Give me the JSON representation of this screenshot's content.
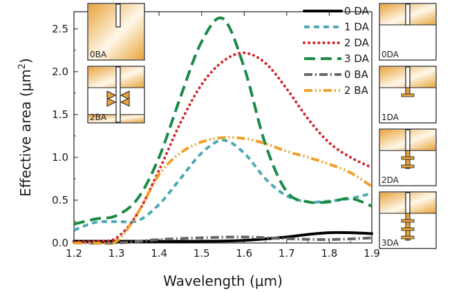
{
  "chart_data": {
    "type": "line",
    "xlabel": "Wavelength (μm)",
    "ylabel": "Effective area (μm",
    "ylabel_sup": "2",
    "ylabel_end": ")",
    "xlim": [
      1.2,
      1.9
    ],
    "ylim": [
      0.0,
      2.7
    ],
    "x_ticks": [
      "1.2",
      "1.3",
      "1.4",
      "1.5",
      "1.6",
      "1.7",
      "1.8",
      "1.9"
    ],
    "y_ticks": [
      "0.0",
      "0.5",
      "1.0",
      "1.5",
      "2.0",
      "2.5"
    ],
    "grid": false,
    "legend_position": "top-right",
    "series": [
      {
        "name": "0 DA",
        "color": "#000000",
        "dash": "solid",
        "x": [
          1.2,
          1.3,
          1.4,
          1.5,
          1.6,
          1.7,
          1.75,
          1.8,
          1.85,
          1.9
        ],
        "y": [
          0.02,
          0.02,
          0.02,
          0.02,
          0.03,
          0.07,
          0.1,
          0.12,
          0.12,
          0.11
        ]
      },
      {
        "name": "1 DA",
        "color": "#4fa8b5",
        "dash": "dash-short",
        "x": [
          1.2,
          1.25,
          1.3,
          1.35,
          1.4,
          1.45,
          1.5,
          1.55,
          1.6,
          1.65,
          1.7,
          1.75,
          1.8,
          1.85,
          1.9
        ],
        "y": [
          0.15,
          0.24,
          0.25,
          0.26,
          0.45,
          0.75,
          1.05,
          1.2,
          1.05,
          0.75,
          0.55,
          0.48,
          0.49,
          0.52,
          0.58
        ]
      },
      {
        "name": "2 DA",
        "color": "#d4232a",
        "dash": "dot",
        "x": [
          1.2,
          1.25,
          1.3,
          1.35,
          1.4,
          1.45,
          1.5,
          1.55,
          1.6,
          1.65,
          1.7,
          1.75,
          1.8,
          1.85,
          1.9
        ],
        "y": [
          0.01,
          0.02,
          0.06,
          0.35,
          0.85,
          1.4,
          1.85,
          2.12,
          2.22,
          2.1,
          1.8,
          1.45,
          1.17,
          1.0,
          0.88
        ]
      },
      {
        "name": "3 DA",
        "color": "#1a8a46",
        "dash": "dash-long",
        "x": [
          1.2,
          1.25,
          1.3,
          1.35,
          1.4,
          1.45,
          1.5,
          1.55,
          1.6,
          1.65,
          1.7,
          1.75,
          1.8,
          1.85,
          1.9
        ],
        "y": [
          0.22,
          0.28,
          0.32,
          0.52,
          1.0,
          1.7,
          2.35,
          2.62,
          2.05,
          1.15,
          0.6,
          0.48,
          0.48,
          0.52,
          0.43
        ]
      },
      {
        "name": "0 BA",
        "color": "#6d6560",
        "dash": "dash-dot",
        "x": [
          1.2,
          1.3,
          1.4,
          1.5,
          1.6,
          1.7,
          1.8,
          1.9
        ],
        "y": [
          0.0,
          0.0,
          0.04,
          0.06,
          0.07,
          0.05,
          0.04,
          0.06
        ]
      },
      {
        "name": "2 BA",
        "color": "#f0a028",
        "dash": "dash-dot-dot",
        "x": [
          1.2,
          1.25,
          1.3,
          1.35,
          1.4,
          1.45,
          1.5,
          1.55,
          1.6,
          1.65,
          1.7,
          1.75,
          1.8,
          1.85,
          1.9
        ],
        "y": [
          0.0,
          0.0,
          0.02,
          0.35,
          0.8,
          1.05,
          1.18,
          1.23,
          1.22,
          1.16,
          1.07,
          1.0,
          0.92,
          0.82,
          0.66
        ]
      }
    ]
  },
  "insets": {
    "left": [
      {
        "label": "0BA",
        "kind": "0BA"
      },
      {
        "label": "2BA",
        "kind": "2BA"
      }
    ],
    "right": [
      {
        "label": "0DA",
        "kind": 0
      },
      {
        "label": "1DA",
        "kind": 1
      },
      {
        "label": "2DA",
        "kind": 2
      },
      {
        "label": "3DA",
        "kind": 3
      }
    ]
  },
  "colors": {
    "metal_gold": "#e8a43c",
    "metal_light": "#fff8ea",
    "outline": "#1a1a1a"
  }
}
